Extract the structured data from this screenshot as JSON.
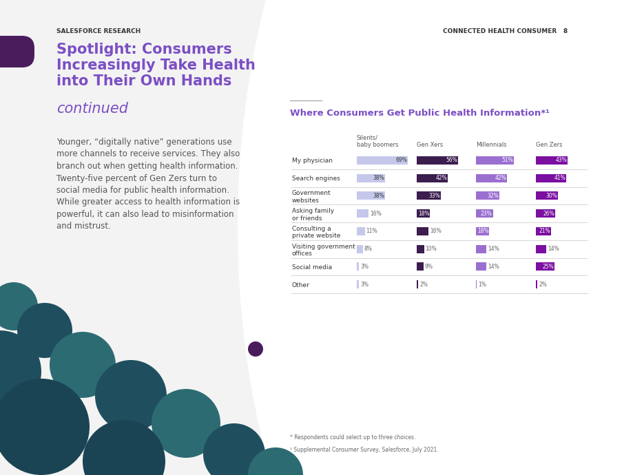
{
  "header": {
    "left": "SALESFORCE RESEARCH",
    "right": "CONNECTED HEALTH CONSUMER",
    "page_number": 8
  },
  "title": "Spotlight: Consumers\nIncreasingly Take Health\ninto Their Own Hands",
  "title_continued": "continued",
  "body": "Younger, “digitally native” generations use\nmore channels to receive services. They also\nbranch out when getting health information.\nTwenty-five percent of Gen Zers turn to\nsocial media for public health information.\nWhile greater access to health information is\npowerful, it can also lead to misinformation\nand mistrust.",
  "chart_data": {
    "type": "bar",
    "orientation": "horizontal",
    "title": "Where Consumers Get Public Health Information*¹",
    "categories": [
      "My physician",
      "Search engines",
      "Government\nwebsites",
      "Asking family\nor friends",
      "Consulting a\nprivate website",
      "Visiting government\noffices",
      "Social media",
      "Other"
    ],
    "series": [
      {
        "name": "Silents/\nbaby boomers",
        "color": "#c5c8ea",
        "values": [
          69,
          38,
          38,
          16,
          11,
          8,
          3,
          3
        ],
        "value_labels": [
          "69%",
          "38%",
          "38%",
          "16%",
          "11%",
          "8%",
          "3%",
          "3%"
        ]
      },
      {
        "name": "Gen Xers",
        "color": "#3b1d4e",
        "values": [
          56,
          42,
          33,
          18,
          16,
          10,
          9,
          2
        ],
        "value_labels": [
          "56%",
          "42%",
          "33%",
          "18%",
          "16%",
          "10%",
          "9%",
          "2%"
        ]
      },
      {
        "name": "Millennials",
        "color": "#9b6fd0",
        "values": [
          51,
          42,
          32,
          23,
          18,
          14,
          14,
          1
        ],
        "value_labels": [
          "51%",
          "42%",
          "32%",
          "23%",
          "18%",
          "14%",
          "14%",
          "1%"
        ]
      },
      {
        "name": "Gen Zers",
        "color": "#7a0fa0",
        "values": [
          43,
          41,
          30,
          26,
          21,
          14,
          25,
          2
        ],
        "value_labels": [
          "43%",
          "41%",
          "30%",
          "26%",
          "21%",
          "14%",
          "25%",
          "2%"
        ]
      }
    ],
    "xlim": [
      0,
      70
    ],
    "xticks": [],
    "data_labels": true,
    "tick_labels": "y"
  },
  "footnotes": [
    "* Respondents could select up to three choices.",
    "¹ Supplemental Consumer Survey, Salesforce, July 2021."
  ]
}
